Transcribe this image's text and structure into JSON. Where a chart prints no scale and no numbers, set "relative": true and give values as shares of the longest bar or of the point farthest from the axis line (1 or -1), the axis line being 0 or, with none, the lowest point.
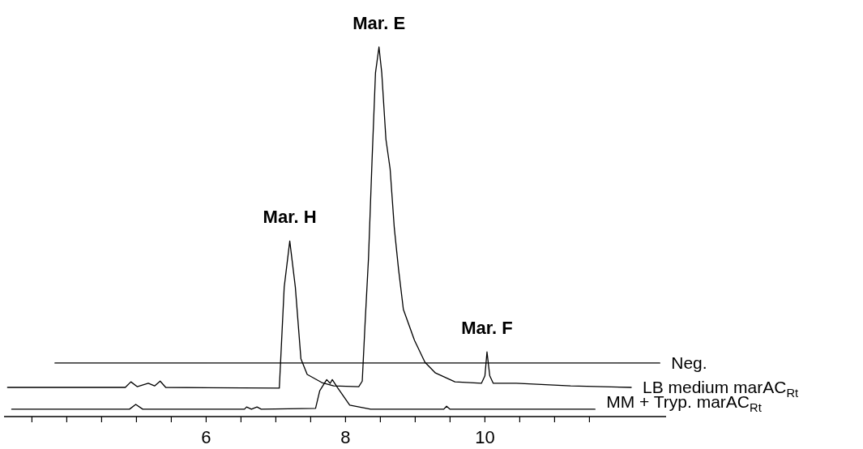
{
  "chart_data": {
    "type": "line",
    "relative": true,
    "xlim": [
      3.1,
      12.6
    ],
    "xticks": [
      {
        "value": 3.5,
        "label": null
      },
      {
        "value": 4,
        "label": null
      },
      {
        "value": 4.5,
        "label": null
      },
      {
        "value": 5,
        "label": null
      },
      {
        "value": 5.5,
        "label": null
      },
      6,
      {
        "value": 6.5,
        "label": null
      },
      {
        "value": 7,
        "label": null
      },
      {
        "value": 7.5,
        "label": null
      },
      8,
      {
        "value": 8.5,
        "label": null
      },
      {
        "value": 9,
        "label": null
      },
      {
        "value": 9.5,
        "label": null
      },
      10,
      {
        "value": 10.5,
        "label": null
      },
      {
        "value": 11,
        "label": null
      },
      {
        "value": 11.5,
        "label": null
      }
    ],
    "tick_labels": "x",
    "grid": false,
    "legend": "right",
    "marker": "none",
    "line_style": "solid",
    "series": [
      {
        "name": "Neg.",
        "color": "#000000",
        "x": [
          3.83,
          5.5,
          7.5,
          9.5,
          11.0,
          12.51
        ],
        "values": [
          0.145,
          0.145,
          0.145,
          0.145,
          0.145,
          0.145
        ]
      },
      {
        "name": "LB medium marAC$_{Rt}$",
        "color": "#000000",
        "x": [
          3.15,
          4.84,
          4.92,
          5.01,
          5.17,
          5.26,
          5.34,
          5.42,
          7.05,
          7.12,
          7.2,
          7.28,
          7.36,
          7.45,
          7.66,
          7.83,
          8.19,
          8.24,
          8.28,
          8.33,
          8.38,
          8.43,
          8.48,
          8.52,
          8.58,
          8.64,
          8.7,
          8.76,
          8.83,
          8.99,
          9.14,
          9.29,
          9.57,
          9.95,
          10.0,
          10.03,
          10.07,
          10.12,
          10.45,
          11.23,
          12.1
        ],
        "values": [
          0.079,
          0.079,
          0.094,
          0.081,
          0.09,
          0.083,
          0.096,
          0.079,
          0.077,
          0.35,
          0.475,
          0.35,
          0.156,
          0.114,
          0.092,
          0.083,
          0.081,
          0.096,
          0.25,
          0.43,
          0.69,
          0.93,
          1.0,
          0.93,
          0.75,
          0.67,
          0.51,
          0.4,
          0.29,
          0.206,
          0.147,
          0.118,
          0.094,
          0.09,
          0.11,
          0.175,
          0.11,
          0.09,
          0.09,
          0.083,
          0.079
        ]
      },
      {
        "name": "MM + Tryp. marAC$_{Rt}$",
        "color": "#000000",
        "x": [
          3.21,
          4.9,
          4.99,
          5.09,
          6.55,
          6.58,
          6.65,
          6.73,
          6.79,
          7.57,
          7.63,
          7.73,
          7.78,
          7.81,
          7.88,
          8.06,
          8.36,
          9.41,
          9.45,
          9.5,
          11.58
        ],
        "values": [
          0.02,
          0.02,
          0.033,
          0.02,
          0.02,
          0.026,
          0.02,
          0.026,
          0.02,
          0.022,
          0.07,
          0.1,
          0.09,
          0.1,
          0.08,
          0.031,
          0.02,
          0.02,
          0.028,
          0.02,
          0.02
        ]
      }
    ],
    "annotations": [
      {
        "text": "Mar. E",
        "x": 8.48,
        "y": 1.0
      },
      {
        "text": "Mar. H",
        "x": 7.2,
        "y": 0.475
      },
      {
        "text": "Mar. F",
        "x": 10.03,
        "y": 0.175
      }
    ]
  }
}
